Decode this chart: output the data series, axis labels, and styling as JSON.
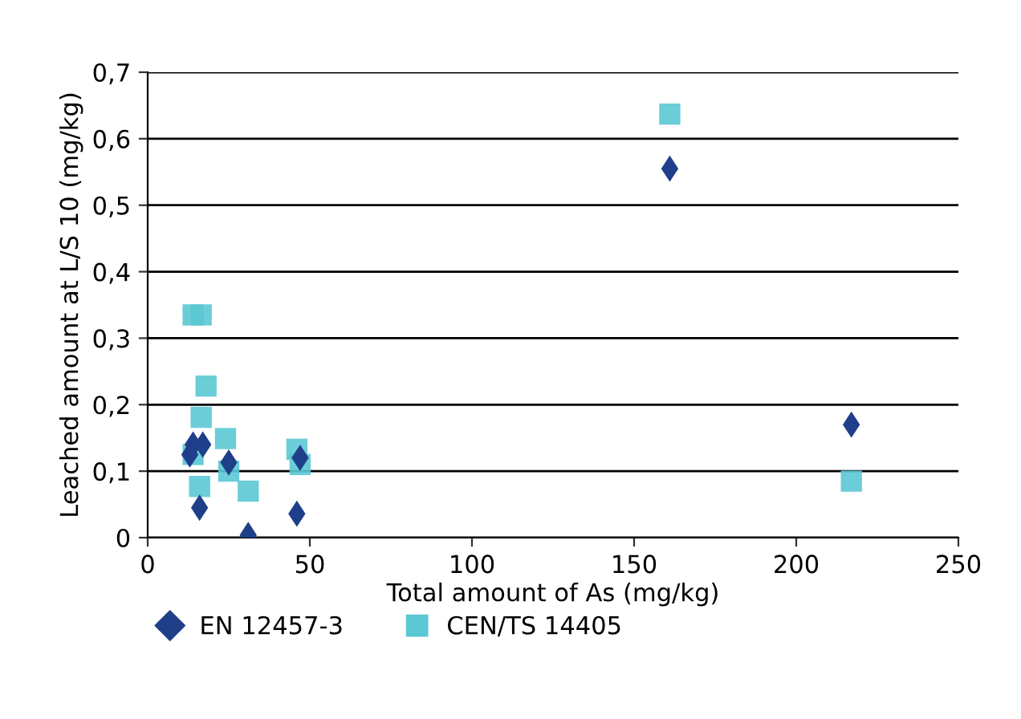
{
  "chart_data": {
    "type": "scatter",
    "xlabel": "Total amount of As (mg/kg)",
    "ylabel": "Leached amount at L/S 10 (mg/kg)",
    "xlim": [
      0,
      250
    ],
    "xticks": [
      0,
      50,
      100,
      150,
      200,
      250
    ],
    "ylim": [
      0,
      0.7
    ],
    "yticks": [
      {
        "value": 0,
        "label": "0"
      },
      {
        "value": 0.1,
        "label": "0,1"
      },
      {
        "value": 0.2,
        "label": "0,2"
      },
      {
        "value": 0.3,
        "label": "0,3"
      },
      {
        "value": 0.4,
        "label": "0,4"
      },
      {
        "value": 0.5,
        "label": "0,5"
      },
      {
        "value": 0.6,
        "label": "0,6"
      },
      {
        "value": 0.7,
        "label": "0,7"
      }
    ],
    "grid": "y",
    "legend": "bottom",
    "series": [
      {
        "name": "EN 12457-3",
        "color": "#1f3f8a",
        "marker": "diamond",
        "x": [
          14,
          17,
          13,
          16,
          25,
          31,
          46,
          47,
          161,
          217
        ],
        "values": [
          0.14,
          0.14,
          0.125,
          0.045,
          0.113,
          0.004,
          0.036,
          0.12,
          0.555,
          0.17
        ]
      },
      {
        "name": "CEN/TS 14405",
        "color": "#5bc8d4",
        "marker": "square",
        "x": [
          14,
          16.5,
          18,
          16.5,
          14,
          16,
          24,
          25,
          31,
          46,
          47,
          161,
          217
        ],
        "values": [
          0.335,
          0.335,
          0.228,
          0.181,
          0.125,
          0.077,
          0.149,
          0.1,
          0.07,
          0.133,
          0.11,
          0.637,
          0.085
        ]
      }
    ]
  }
}
